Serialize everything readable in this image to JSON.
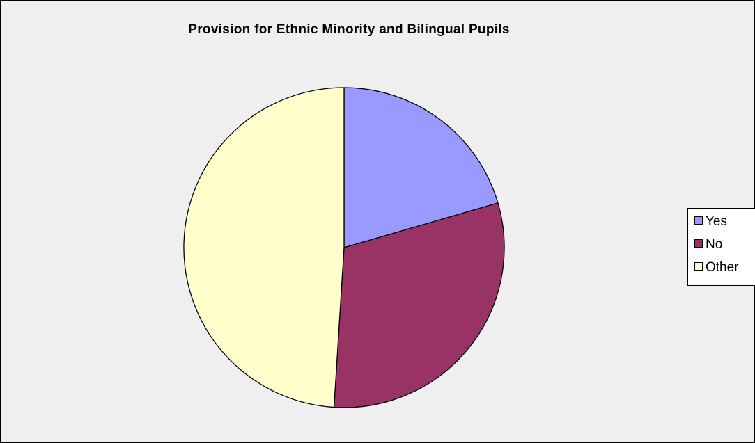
{
  "chart_data": {
    "type": "pie",
    "title": "Provision for Ethnic Minority and Bilingual Pupils",
    "categories": [
      "Yes",
      "No",
      "Other"
    ],
    "values": [
      20.5,
      30.5,
      49.0
    ],
    "colors": [
      "#9999ff",
      "#993366",
      "#ffffcc"
    ],
    "legend_position": "right"
  },
  "colors": {
    "background": "#efefef",
    "border": "#000000"
  }
}
